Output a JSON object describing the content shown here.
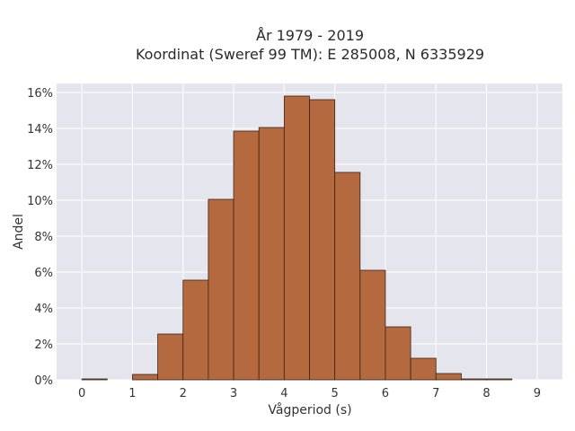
{
  "chart_data": {
    "type": "bar",
    "title_line1": "År 1979 - 2019",
    "title_line2": "Koordinat (Sweref 99 TM): E 285008, N 6335929",
    "xlabel": "Vågperiod (s)",
    "ylabel": "Andel",
    "x_ticks": [
      "0",
      "1",
      "2",
      "3",
      "4",
      "5",
      "6",
      "7",
      "8",
      "9"
    ],
    "y_ticks": [
      "0%",
      "2%",
      "4%",
      "6%",
      "8%",
      "10%",
      "12%",
      "14%",
      "16%"
    ],
    "xlim": [
      -0.5,
      9.5
    ],
    "ylim": [
      0,
      16.5
    ],
    "bin_width": 0.5,
    "bins": [
      {
        "start": 0.0,
        "value": 0.05
      },
      {
        "start": 0.5,
        "value": 0.0
      },
      {
        "start": 1.0,
        "value": 0.3
      },
      {
        "start": 1.5,
        "value": 2.55
      },
      {
        "start": 2.0,
        "value": 5.55
      },
      {
        "start": 2.5,
        "value": 10.05
      },
      {
        "start": 3.0,
        "value": 13.85
      },
      {
        "start": 3.5,
        "value": 14.05
      },
      {
        "start": 4.0,
        "value": 15.8
      },
      {
        "start": 4.5,
        "value": 15.6
      },
      {
        "start": 5.0,
        "value": 11.55
      },
      {
        "start": 5.5,
        "value": 6.1
      },
      {
        "start": 6.0,
        "value": 2.95
      },
      {
        "start": 6.5,
        "value": 1.2
      },
      {
        "start": 7.0,
        "value": 0.35
      },
      {
        "start": 7.5,
        "value": 0.05
      },
      {
        "start": 8.0,
        "value": 0.05
      },
      {
        "start": 8.5,
        "value": 0.0
      }
    ],
    "grid": true,
    "colors": {
      "bar_fill": "#b5693f",
      "bar_stroke": "#3a2418",
      "plot_background": "#e5e5ee",
      "grid": "#ffffff"
    }
  }
}
